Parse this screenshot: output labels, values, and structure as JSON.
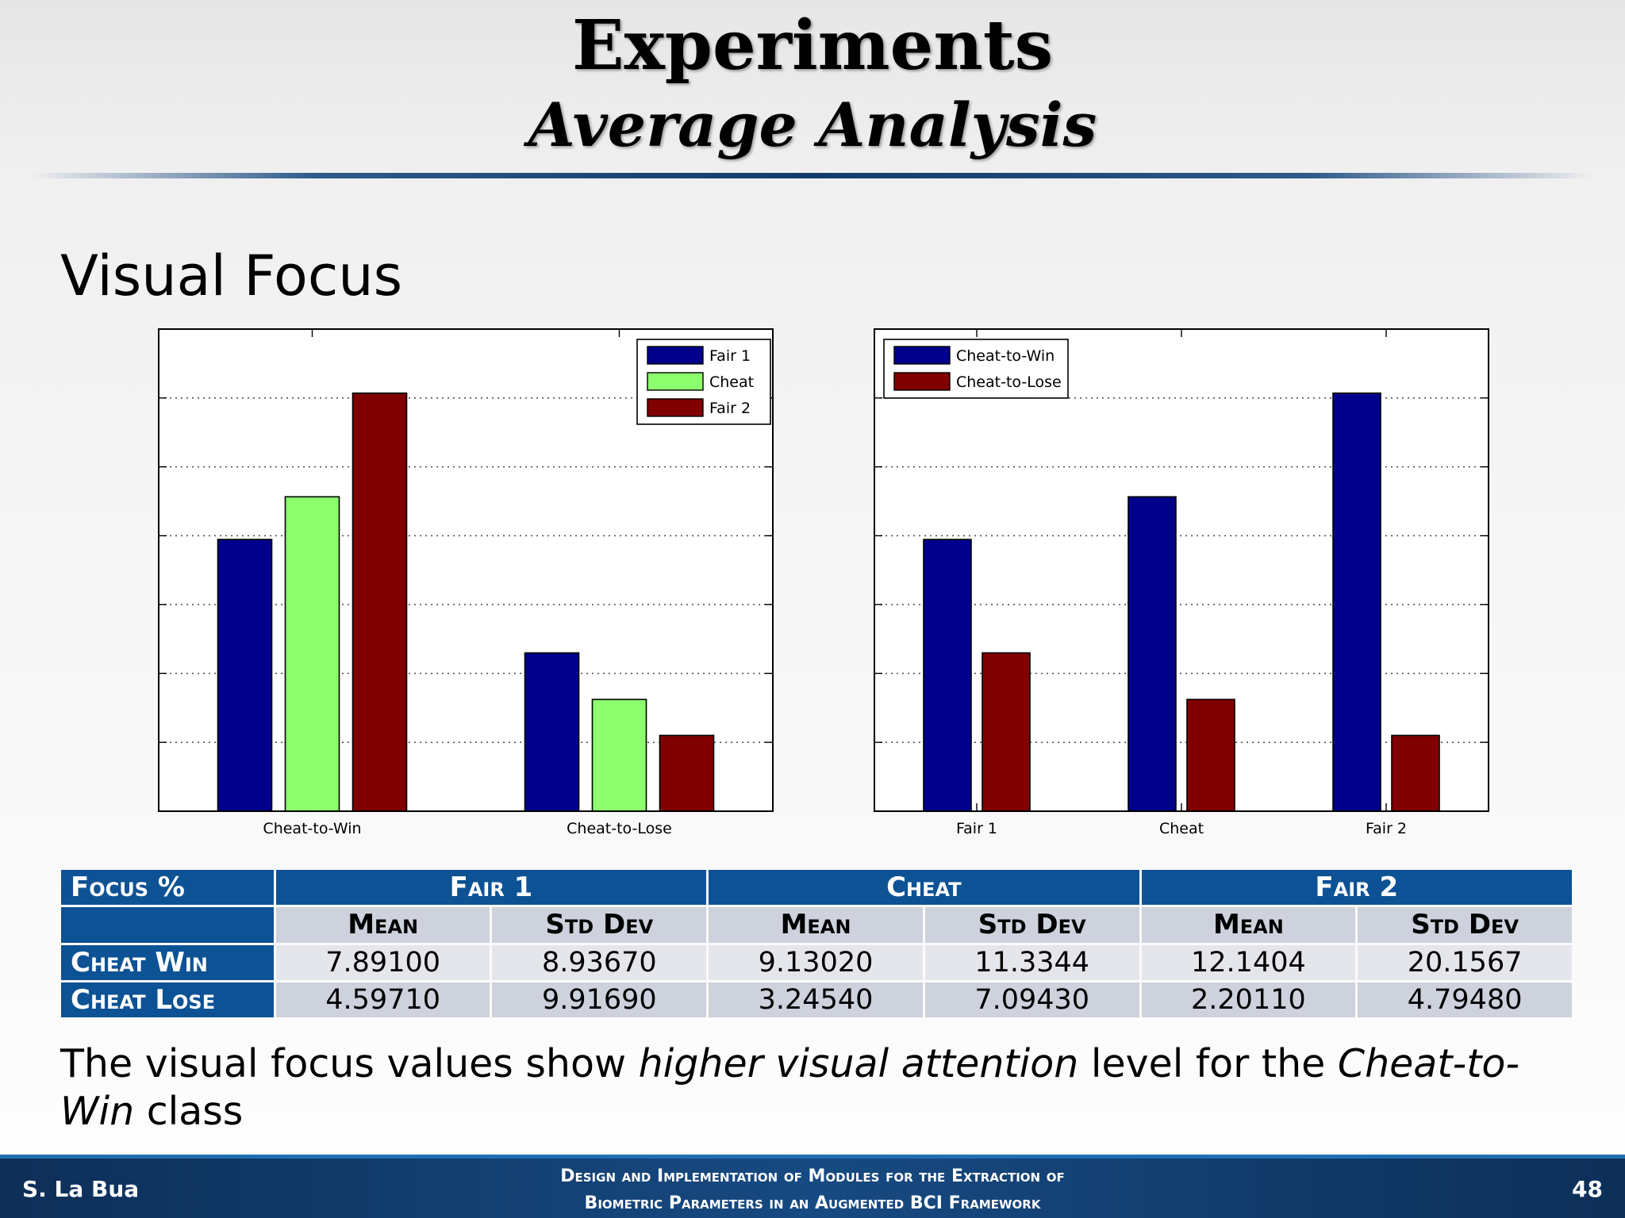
{
  "slide": {
    "title": "Experiments",
    "subtitle": "Average Analysis",
    "section_heading": "Visual Focus",
    "conclusion": {
      "part1": "The visual focus values show ",
      "emph1": "higher visual attention",
      "part2": " level for the ",
      "emph2": "Cheat-to-Win",
      "part3": " class"
    },
    "footer": {
      "author": "S. La Bua",
      "title_line1": "Design and Implementation of Modules for the Extraction of",
      "title_line2": "Biometric Parameters in an Augmented BCI Framework",
      "page_number": "48"
    }
  },
  "colors": {
    "fair1": "#00008b",
    "cheat": "#8cff6e",
    "fair2": "#800000",
    "cheat_to_win": "#00008b",
    "cheat_to_lose": "#800000",
    "table_header": "#0d5294"
  },
  "chart_data": [
    {
      "type": "bar",
      "categories": [
        "Cheat-to-Win",
        "Cheat-to-Lose"
      ],
      "series": [
        {
          "name": "Fair 1",
          "values": [
            7.891,
            4.5971
          ]
        },
        {
          "name": "Cheat",
          "values": [
            9.1302,
            3.2454
          ]
        },
        {
          "name": "Fair 2",
          "values": [
            12.1404,
            2.2011
          ]
        }
      ],
      "ylim": [
        0,
        14
      ],
      "y_ticks": [
        2,
        4,
        6,
        8,
        10,
        12
      ],
      "grid": true,
      "legend": "top-right",
      "xlabel": "",
      "ylabel": ""
    },
    {
      "type": "bar",
      "categories": [
        "Fair 1",
        "Cheat",
        "Fair 2"
      ],
      "series": [
        {
          "name": "Cheat-to-Win",
          "values": [
            7.891,
            9.1302,
            12.1404
          ]
        },
        {
          "name": "Cheat-to-Lose",
          "values": [
            4.5971,
            3.2454,
            2.2011
          ]
        }
      ],
      "ylim": [
        0,
        14
      ],
      "y_ticks": [
        2,
        4,
        6,
        8,
        10,
        12
      ],
      "grid": true,
      "legend": "top-left",
      "xlabel": "",
      "ylabel": ""
    }
  ],
  "table": {
    "corner_label": "Focus %",
    "groups": [
      "Fair 1",
      "Cheat",
      "Fair 2"
    ],
    "sub_headers": [
      "Mean",
      "Std Dev",
      "Mean",
      "Std Dev",
      "Mean",
      "Std Dev"
    ],
    "rows": [
      {
        "label": "Cheat Win",
        "values": [
          "7.89100",
          "8.93670",
          "9.13020",
          "11.3344",
          "12.1404",
          "20.1567"
        ]
      },
      {
        "label": "Cheat Lose",
        "values": [
          "4.59710",
          "9.91690",
          "3.24540",
          "7.09430",
          "2.20110",
          "4.79480"
        ]
      }
    ]
  }
}
